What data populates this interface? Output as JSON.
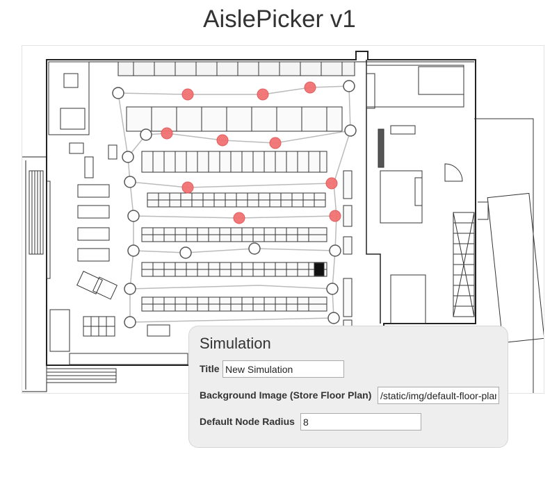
{
  "app": {
    "title": "AislePicker v1"
  },
  "simulation_panel": {
    "heading": "Simulation",
    "fields": {
      "title": {
        "label": "Title",
        "value": "New Simulation"
      },
      "background_image": {
        "label": "Background Image (Store Floor Plan)",
        "value": "/static/img/default-floor-plan.png"
      },
      "default_node_radius": {
        "label": "Default Node Radius",
        "value": "8"
      }
    }
  },
  "floor_plan": {
    "node_colors": {
      "active": "#f27272",
      "idle": "#ffffff",
      "stroke": "#555555",
      "edge": "#bbbbbb"
    }
  }
}
